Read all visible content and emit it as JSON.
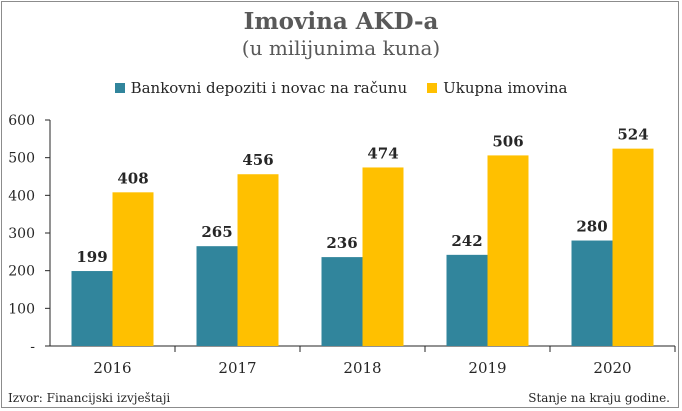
{
  "header": {
    "title": "Imovina AKD-a",
    "subtitle": "(u milijunima kuna)"
  },
  "footer": {
    "source": "Izvor: Financijski izvještaji",
    "note": "Stanje  na kraju godine."
  },
  "colors": {
    "series1": "#31859c",
    "series2": "#ffc000",
    "axis": "#262626"
  },
  "chart_data": {
    "type": "bar",
    "title": "Imovina AKD-a",
    "subtitle": "(u milijunima kuna)",
    "categories": [
      "2016",
      "2017",
      "2018",
      "2019",
      "2020"
    ],
    "series": [
      {
        "name": "Bankovni depoziti i novac na računu",
        "values": [
          199,
          265,
          236,
          242,
          280
        ]
      },
      {
        "name": "Ukupna imovina",
        "values": [
          408,
          456,
          474,
          506,
          524
        ]
      }
    ],
    "ylim": [
      0,
      600
    ],
    "yticks": [
      "-",
      "100",
      "200",
      "300",
      "400",
      "500",
      "600"
    ],
    "grid": false,
    "legend": "top"
  }
}
